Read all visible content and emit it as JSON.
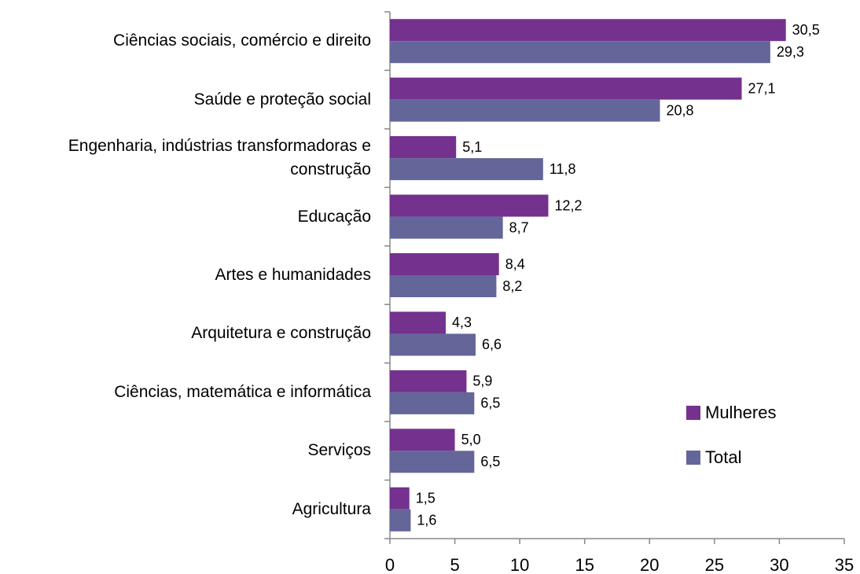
{
  "chart_data": {
    "type": "bar",
    "orientation": "horizontal",
    "categories": [
      "Ciências sociais, comércio e direito",
      "Saúde e proteção social",
      "Engenharia, indústrias transformadoras e construção",
      "Educação",
      "Artes e humanidades",
      "Arquitetura e construção",
      "Ciências, matemática e informática",
      "Serviços",
      "Agricultura"
    ],
    "series": [
      {
        "name": "Mulheres",
        "color": "#74318e",
        "values": [
          30.5,
          27.1,
          5.1,
          12.2,
          8.4,
          4.3,
          5.9,
          5.0,
          1.5
        ],
        "value_labels": [
          "30,5",
          "27,1",
          "5,1",
          "12,2",
          "8,4",
          "4,3",
          "5,9",
          "5,0",
          "1,5"
        ]
      },
      {
        "name": "Total",
        "color": "#646699",
        "values": [
          29.3,
          20.8,
          11.8,
          8.7,
          8.2,
          6.6,
          6.5,
          6.5,
          1.6
        ],
        "value_labels": [
          "29,3",
          "20,8",
          "11,8",
          "8,7",
          "8,2",
          "6,6",
          "6,5",
          "6,5",
          "1,6"
        ]
      }
    ],
    "xlim": [
      0,
      35
    ],
    "xticks": [
      0,
      5,
      10,
      15,
      20,
      25,
      30,
      35
    ],
    "grid": false,
    "legend": "lower right"
  }
}
